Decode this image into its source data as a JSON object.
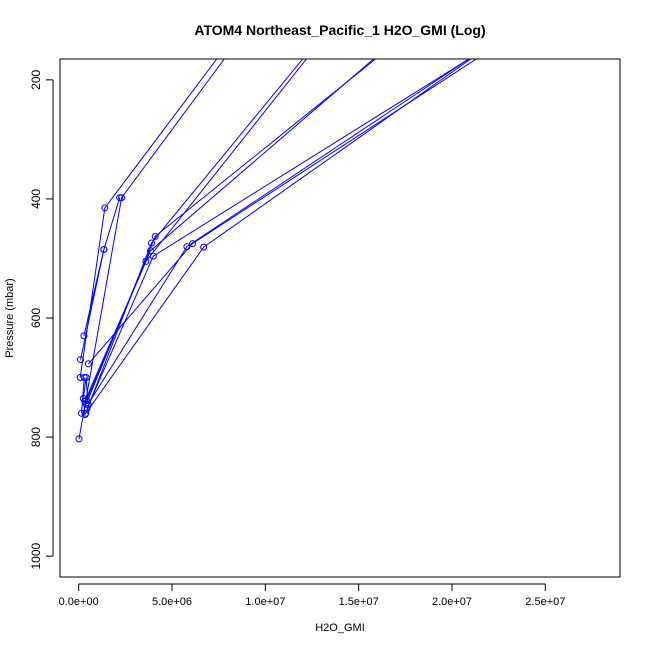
{
  "chart_data": {
    "type": "line",
    "title": "ATOM4 Northeast_Pacific_1 H2O_GMI (Log)",
    "xlabel": "H2O_GMI",
    "ylabel": "Pressure (mbar)",
    "xlim": [
      -1000000,
      29000000
    ],
    "ylim": [
      1035,
      165
    ],
    "y_reversed": true,
    "x_ticks": [
      0,
      5000000,
      10000000,
      15000000,
      20000000,
      25000000
    ],
    "x_tick_labels": [
      "0.0e+00",
      "5.0e+06",
      "1.0e+07",
      "1.5e+07",
      "2.0e+07",
      "2.5e+07"
    ],
    "y_ticks": [
      200,
      400,
      600,
      800,
      1000
    ],
    "y_tick_labels": [
      "200",
      "400",
      "600",
      "800",
      "1000"
    ],
    "grid": false,
    "line_color": "#0000ff",
    "series": [
      {
        "x": [
          20000,
          2300000,
          7800000
        ],
        "y": [
          803,
          398,
          165
        ]
      },
      {
        "x": [
          80000,
          1400000,
          7400000
        ],
        "y": [
          700,
          415,
          165
        ]
      },
      {
        "x": [
          100000,
          1350000,
          2200000
        ],
        "y": [
          670,
          485,
          398
        ]
      },
      {
        "x": [
          280000,
          1350000
        ],
        "y": [
          630,
          485
        ]
      },
      {
        "x": [
          330000,
          3600000,
          12200000
        ],
        "y": [
          740,
          505,
          165
        ]
      },
      {
        "x": [
          350000,
          3900000,
          12000000
        ],
        "y": [
          762,
          474,
          165
        ]
      },
      {
        "x": [
          400000,
          4100000,
          15900000
        ],
        "y": [
          745,
          463,
          165
        ]
      },
      {
        "x": [
          420000,
          3850000,
          15800000
        ],
        "y": [
          738,
          487,
          165
        ]
      },
      {
        "x": [
          450000,
          4000000,
          20900000
        ],
        "y": [
          752,
          496,
          165
        ]
      },
      {
        "x": [
          500000,
          5800000,
          20900000
        ],
        "y": [
          745,
          480,
          165
        ]
      },
      {
        "x": [
          520000,
          6100000,
          21300000
        ],
        "y": [
          677,
          475,
          165
        ]
      },
      {
        "x": [
          380000,
          6700000,
          21000000
        ],
        "y": [
          760,
          481,
          165
        ]
      },
      {
        "x": [
          250000,
          400000,
          500000
        ],
        "y": [
          735,
          700,
          745
        ]
      },
      {
        "x": [
          150000,
          300000
        ],
        "y": [
          760,
          700
        ]
      }
    ]
  }
}
